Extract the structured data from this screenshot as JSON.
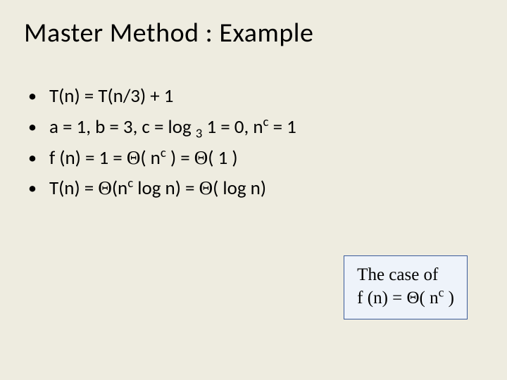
{
  "slide": {
    "title": "Master Method : Example",
    "bullets": [
      {
        "html": "T(n) = T(n/3) + 1"
      },
      {
        "html": "a = 1, b = 3, c = log <sub>3</sub> 1 = 0, n<sup>c</sup> = 1"
      },
      {
        "html": "f (n) = 1 = <span class=\"serif\">&Theta;</span>( n<sup>c</sup> ) = <span class=\"serif\">&Theta;</span>( 1 )"
      },
      {
        "html": "T(n) = <span class=\"serif\">&Theta;</span>(n<sup>c</sup> log n) = <span class=\"serif\">&Theta;</span>( log n)"
      }
    ],
    "callout": {
      "line1": "The case of",
      "line2_html": "f (n) = &Theta;( n<sup>c</sup> )"
    },
    "colors": {
      "background": "#eeece0",
      "text": "#000000",
      "callout_bg": "#eef3fa",
      "callout_border": "#3a5b9b"
    }
  }
}
